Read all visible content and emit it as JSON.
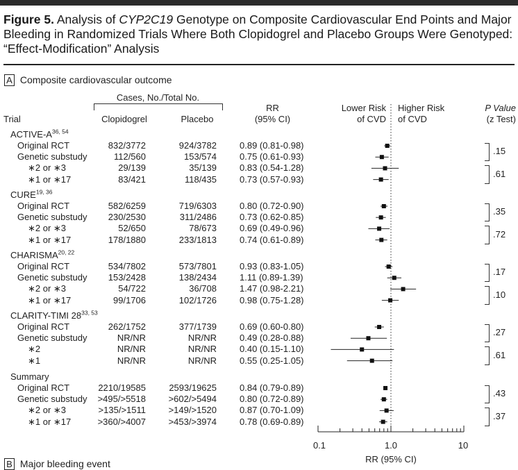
{
  "figure": {
    "label": "Figure 5.",
    "title_pre": "Analysis of ",
    "title_gene": "CYP2C19",
    "title_post": " Genotype on Composite Cardiovascular End Points and Major Bleeding in Randomized Trials Where Both Clopidogrel and Placebo Groups Were Genotyped: “Effect-Modification” Analysis"
  },
  "panel_a": {
    "letter": "A",
    "title": "Composite cardiovascular outcome"
  },
  "panel_b": {
    "letter": "B",
    "title": "Major bleeding event"
  },
  "headers": {
    "trial": "Trial",
    "cases_group": "Cases, No./Total No.",
    "clopidogrel": "Clopidogrel",
    "placebo": "Placebo",
    "rr_line1": "RR",
    "rr_line2": "(95% CI)",
    "lower_line1": "Lower Risk",
    "lower_line2": "of CVD",
    "higher_line1": "Higher Risk",
    "higher_line2": "of CVD",
    "p_line1": "P Value",
    "p_line2": "(z Test)"
  },
  "groups": [
    {
      "name": "ACTIVE-A",
      "sup": "36, 54",
      "rows": [
        {
          "label": "Original RCT",
          "clop": "832/3772",
          "plac": "924/3782",
          "rr_text": "0.89 (0.81-0.98)",
          "rr": 0.89,
          "lo": 0.81,
          "hi": 0.98
        },
        {
          "label": "Genetic substudy",
          "clop": "112/560",
          "plac": "153/574",
          "rr_text": "0.75 (0.61-0.93)",
          "rr": 0.75,
          "lo": 0.61,
          "hi": 0.93
        },
        {
          "label": "∗2 or ∗3",
          "clop": "29/139",
          "plac": "35/139",
          "rr_text": "0.83 (0.54-1.28)",
          "rr": 0.83,
          "lo": 0.54,
          "hi": 1.28
        },
        {
          "label": "∗1 or ∗17",
          "clop": "83/421",
          "plac": "118/435",
          "rr_text": "0.73 (0.57-0.93)",
          "rr": 0.73,
          "lo": 0.57,
          "hi": 0.93
        }
      ],
      "p1": ".15",
      "p2": ".61"
    },
    {
      "name": "CURE",
      "sup": "19, 36",
      "rows": [
        {
          "label": "Original RCT",
          "clop": "582/6259",
          "plac": "719/6303",
          "rr_text": "0.80 (0.72-0.90)",
          "rr": 0.8,
          "lo": 0.72,
          "hi": 0.9
        },
        {
          "label": "Genetic substudy",
          "clop": "230/2530",
          "plac": "311/2486",
          "rr_text": "0.73 (0.62-0.85)",
          "rr": 0.73,
          "lo": 0.62,
          "hi": 0.85
        },
        {
          "label": "∗2 or ∗3",
          "clop": "52/650",
          "plac": "78/673",
          "rr_text": "0.69 (0.49-0.96)",
          "rr": 0.69,
          "lo": 0.49,
          "hi": 0.96
        },
        {
          "label": "∗1 or ∗17",
          "clop": "178/1880",
          "plac": "233/1813",
          "rr_text": "0.74 (0.61-0.89)",
          "rr": 0.74,
          "lo": 0.61,
          "hi": 0.89
        }
      ],
      "p1": ".35",
      "p2": ".72"
    },
    {
      "name": "CHARISMA",
      "sup": "20, 22",
      "rows": [
        {
          "label": "Original RCT",
          "clop": "534/7802",
          "plac": "573/7801",
          "rr_text": "0.93 (0.83-1.05)",
          "rr": 0.93,
          "lo": 0.83,
          "hi": 1.05
        },
        {
          "label": "Genetic substudy",
          "clop": "153/2428",
          "plac": "138/2434",
          "rr_text": "1.11 (0.89-1.39)",
          "rr": 1.11,
          "lo": 0.89,
          "hi": 1.39
        },
        {
          "label": "∗2 or ∗3",
          "clop": "54/722",
          "plac": "36/708",
          "rr_text": "1.47 (0.98-2.21)",
          "rr": 1.47,
          "lo": 0.98,
          "hi": 2.21
        },
        {
          "label": "∗1 or ∗17",
          "clop": "99/1706",
          "plac": "102/1726",
          "rr_text": "0.98 (0.75-1.28)",
          "rr": 0.98,
          "lo": 0.75,
          "hi": 1.28
        }
      ],
      "p1": ".17",
      "p2": ".10"
    },
    {
      "name": "CLARITY-TIMI 28",
      "sup": "33, 53",
      "rows": [
        {
          "label": "Original RCT",
          "clop": "262/1752",
          "plac": "377/1739",
          "rr_text": "0.69 (0.60-0.80)",
          "rr": 0.69,
          "lo": 0.6,
          "hi": 0.8
        },
        {
          "label": "Genetic substudy",
          "clop": "NR/NR",
          "plac": "NR/NR",
          "rr_text": "0.49 (0.28-0.88)",
          "rr": 0.49,
          "lo": 0.28,
          "hi": 0.88
        },
        {
          "label": "∗2",
          "clop": "NR/NR",
          "plac": "NR/NR",
          "rr_text": "0.40 (0.15-1.10)",
          "rr": 0.4,
          "lo": 0.15,
          "hi": 1.1
        },
        {
          "label": "∗1",
          "clop": "NR/NR",
          "plac": "NR/NR",
          "rr_text": "0.55 (0.25-1.05)",
          "rr": 0.55,
          "lo": 0.25,
          "hi": 1.05
        }
      ],
      "p1": ".27",
      "p2": ".61"
    },
    {
      "name": "Summary",
      "sup": "",
      "rows": [
        {
          "label": "Original RCT",
          "clop": "2210/19585",
          "plac": "2593/19625",
          "rr_text": "0.84 (0.79-0.89)",
          "rr": 0.84,
          "lo": 0.79,
          "hi": 0.89
        },
        {
          "label": "Genetic substudy",
          "clop": ">495/>5518",
          "plac": ">602/>5494",
          "rr_text": "0.80 (0.72-0.89)",
          "rr": 0.8,
          "lo": 0.72,
          "hi": 0.89
        },
        {
          "label": "∗2 or ∗3",
          "clop": ">135/>1511",
          "plac": ">149/>1520",
          "rr_text": "0.87 (0.70-1.09)",
          "rr": 0.87,
          "lo": 0.7,
          "hi": 1.09
        },
        {
          "label": "∗1 or ∗17",
          "clop": ">360/>4007",
          "plac": ">453/>3974",
          "rr_text": "0.78 (0.69-0.89)",
          "rr": 0.78,
          "lo": 0.69,
          "hi": 0.89
        }
      ],
      "p1": ".43",
      "p2": ".37"
    }
  ],
  "axis": {
    "ticks": [
      "0.1",
      "1.0",
      "10"
    ],
    "label": "RR (95% CI)"
  },
  "chart_data": {
    "type": "scatter",
    "x_scale": "log",
    "xlim": [
      0.1,
      10
    ],
    "xlabel": "RR (95% CI)",
    "reference_line": 1.0,
    "series": [
      {
        "name": "ACTIVE-A",
        "points": [
          {
            "label": "Original RCT",
            "rr": 0.89,
            "lo": 0.81,
            "hi": 0.98
          },
          {
            "label": "Genetic substudy",
            "rr": 0.75,
            "lo": 0.61,
            "hi": 0.93
          },
          {
            "label": "∗2 or ∗3",
            "rr": 0.83,
            "lo": 0.54,
            "hi": 1.28
          },
          {
            "label": "∗1 or ∗17",
            "rr": 0.73,
            "lo": 0.57,
            "hi": 0.93
          }
        ]
      },
      {
        "name": "CURE",
        "points": [
          {
            "label": "Original RCT",
            "rr": 0.8,
            "lo": 0.72,
            "hi": 0.9
          },
          {
            "label": "Genetic substudy",
            "rr": 0.73,
            "lo": 0.62,
            "hi": 0.85
          },
          {
            "label": "∗2 or ∗3",
            "rr": 0.69,
            "lo": 0.49,
            "hi": 0.96
          },
          {
            "label": "∗1 or ∗17",
            "rr": 0.74,
            "lo": 0.61,
            "hi": 0.89
          }
        ]
      },
      {
        "name": "CHARISMA",
        "points": [
          {
            "label": "Original RCT",
            "rr": 0.93,
            "lo": 0.83,
            "hi": 1.05
          },
          {
            "label": "Genetic substudy",
            "rr": 1.11,
            "lo": 0.89,
            "hi": 1.39
          },
          {
            "label": "∗2 or ∗3",
            "rr": 1.47,
            "lo": 0.98,
            "hi": 2.21
          },
          {
            "label": "∗1 or ∗17",
            "rr": 0.98,
            "lo": 0.75,
            "hi": 1.28
          }
        ]
      },
      {
        "name": "CLARITY-TIMI 28",
        "points": [
          {
            "label": "Original RCT",
            "rr": 0.69,
            "lo": 0.6,
            "hi": 0.8
          },
          {
            "label": "Genetic substudy",
            "rr": 0.49,
            "lo": 0.28,
            "hi": 0.88
          },
          {
            "label": "∗2",
            "rr": 0.4,
            "lo": 0.15,
            "hi": 1.1
          },
          {
            "label": "∗1",
            "rr": 0.55,
            "lo": 0.25,
            "hi": 1.05
          }
        ]
      },
      {
        "name": "Summary",
        "points": [
          {
            "label": "Original RCT",
            "rr": 0.84,
            "lo": 0.79,
            "hi": 0.89
          },
          {
            "label": "Genetic substudy",
            "rr": 0.8,
            "lo": 0.72,
            "hi": 0.89
          },
          {
            "label": "∗2 or ∗3",
            "rr": 0.87,
            "lo": 0.7,
            "hi": 1.09
          },
          {
            "label": "∗1 or ∗17",
            "rr": 0.78,
            "lo": 0.69,
            "hi": 0.89
          }
        ]
      }
    ]
  }
}
